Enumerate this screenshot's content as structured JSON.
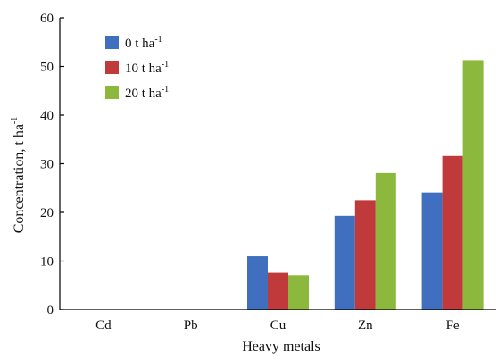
{
  "chart_data": {
    "type": "bar",
    "title": "",
    "xlabel": "Heavy metals",
    "ylabel": "Concentration, t ha",
    "ylabel_sup": "-1",
    "categories": [
      "Cd",
      "Pb",
      "Cu",
      "Zn",
      "Fe"
    ],
    "ylim": [
      0,
      60
    ],
    "yticks": [
      0,
      10,
      20,
      30,
      40,
      50,
      60
    ],
    "grid": false,
    "legend_position": "top-left",
    "series": [
      {
        "name": "0 t ha",
        "name_sup": "-1",
        "color": "#3f6fbe",
        "values": [
          0,
          0,
          11,
          19.3,
          24.1
        ]
      },
      {
        "name": "10 t ha",
        "name_sup": "-1",
        "color": "#c0393b",
        "values": [
          0,
          0,
          7.6,
          22.5,
          31.6
        ]
      },
      {
        "name": "20 t ha",
        "name_sup": "-1",
        "color": "#8cb83e",
        "values": [
          0,
          0,
          7.1,
          28.1,
          51.3
        ]
      }
    ]
  }
}
